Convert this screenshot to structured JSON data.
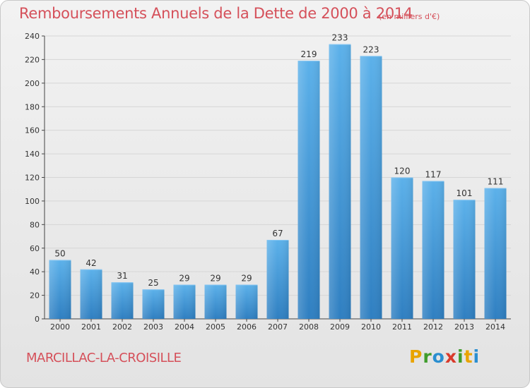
{
  "chart_data": {
    "type": "bar",
    "title": "Remboursements Annuels de la Dette de 2000 à 2014",
    "unit_note": "(en milliers d'€)",
    "categories": [
      "2000",
      "2001",
      "2002",
      "2003",
      "2004",
      "2005",
      "2006",
      "2007",
      "2008",
      "2009",
      "2010",
      "2011",
      "2012",
      "2013",
      "2014"
    ],
    "values": [
      50,
      42,
      31,
      25,
      29,
      29,
      29,
      67,
      219,
      233,
      223,
      120,
      117,
      101,
      111
    ],
    "ylim": [
      0,
      240
    ],
    "yticks": [
      0,
      20,
      40,
      60,
      80,
      100,
      120,
      140,
      160,
      180,
      200,
      220,
      240
    ],
    "grid": true,
    "bar_color": "#4a9de0"
  },
  "footer": {
    "commune": "MARCILLAC-LA-CROISILLE",
    "logo_letters": [
      "P",
      "r",
      "o",
      "x",
      "i",
      "t",
      "i"
    ],
    "logo_colors": [
      "#e9a400",
      "#3f9c2c",
      "#2a8ed0",
      "#d93a2b",
      "#3f9c2c",
      "#e9a400",
      "#2a8ed0"
    ]
  }
}
